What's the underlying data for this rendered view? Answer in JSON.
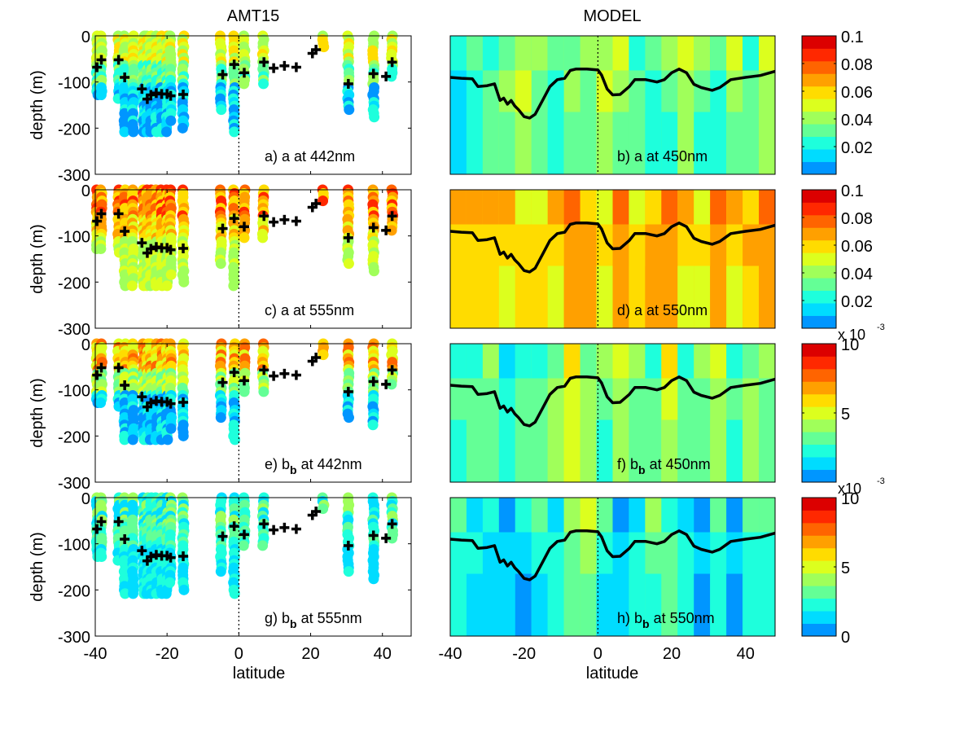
{
  "chart_data": {
    "type": "heatmap",
    "figure_columns": [
      {
        "title": "AMT15"
      },
      {
        "title": "MODEL"
      }
    ],
    "xlabel": "latitude",
    "ylabel": "depth (m)",
    "left_xlim": [
      -40,
      48
    ],
    "right_xlim": [
      -40,
      48
    ],
    "ylim": [
      -300,
      0
    ],
    "x_ticks": [
      "-40",
      "-20",
      "0",
      "20",
      "40"
    ],
    "x_tick_values": [
      -40,
      -20,
      0,
      20,
      40
    ],
    "y_ticks": [
      "0",
      "-100",
      "-200",
      "-300"
    ],
    "y_tick_values": [
      0,
      -100,
      -200,
      -300
    ],
    "equator_line": {
      "latitude": 0,
      "style": "dotted"
    },
    "colormap": [
      "#0096ff",
      "#00dcff",
      "#1effdc",
      "#64ff96",
      "#a0ff5a",
      "#dcff1e",
      "#ffdc00",
      "#ffa000",
      "#ff6400",
      "#ff2800",
      "#dc0000"
    ],
    "panels": [
      {
        "id": "a",
        "label": "a) a at 442nm",
        "column": "AMT15",
        "quantity": "a",
        "wavelength_nm": 442,
        "clim": [
          0,
          0.1
        ],
        "colorbar_ticks": [
          "0.1",
          "0.08",
          "0.06",
          "0.04",
          "0.02"
        ],
        "colorbar_tick_values": [
          0.1,
          0.08,
          0.06,
          0.04,
          0.02
        ],
        "colorbar_multiplier": ""
      },
      {
        "id": "b",
        "label": "b) a at 450nm",
        "column": "MODEL",
        "quantity": "a",
        "wavelength_nm": 450,
        "clim": [
          0,
          0.1
        ],
        "colorbar_ticks": [
          "0.1",
          "0.08",
          "0.06",
          "0.04",
          "0.02"
        ],
        "colorbar_tick_values": [
          0.1,
          0.08,
          0.06,
          0.04,
          0.02
        ],
        "colorbar_multiplier": ""
      },
      {
        "id": "c",
        "label": "c) a at 555nm",
        "column": "AMT15",
        "quantity": "a",
        "wavelength_nm": 555,
        "clim": [
          0,
          0.1
        ]
      },
      {
        "id": "d",
        "label": "d) a at 550nm",
        "column": "MODEL",
        "quantity": "a",
        "wavelength_nm": 550,
        "clim": [
          0,
          0.1
        ],
        "colorbar_ticks": [
          "0.1",
          "0.08",
          "0.06",
          "0.04",
          "0.02"
        ],
        "colorbar_tick_values": [
          0.1,
          0.08,
          0.06,
          0.04,
          0.02
        ],
        "colorbar_multiplier": "x 10-3"
      },
      {
        "id": "e",
        "label_main": "e) b",
        "label_sub": "b",
        "label_rest": " at 442nm",
        "column": "AMT15",
        "quantity": "bb",
        "wavelength_nm": 442,
        "clim": [
          0,
          10
        ]
      },
      {
        "id": "f",
        "label_main": "f) b",
        "label_sub": "b",
        "label_rest": " at 450nm",
        "column": "MODEL",
        "quantity": "bb",
        "wavelength_nm": 450,
        "clim": [
          0,
          10
        ],
        "colorbar_ticks": [
          "10",
          "5"
        ],
        "colorbar_tick_values": [
          10,
          5
        ],
        "colorbar_multiplier": "x10-3"
      },
      {
        "id": "g",
        "label_main": "g) b",
        "label_sub": "b",
        "label_rest": " at 555nm",
        "column": "AMT15",
        "quantity": "bb",
        "wavelength_nm": 555,
        "clim": [
          0,
          10
        ]
      },
      {
        "id": "h",
        "label_main": "h) b",
        "label_sub": "b",
        "label_rest": " at 550nm",
        "column": "MODEL",
        "quantity": "bb",
        "wavelength_nm": 550,
        "clim": [
          0,
          10
        ],
        "colorbar_ticks": [
          "10",
          "5",
          "0"
        ],
        "colorbar_tick_values": [
          10,
          5,
          0
        ],
        "colorbar_multiplier": ""
      }
    ],
    "mixed_layer_crosses": [
      [
        -39.5,
        -68
      ],
      [
        -38.3,
        -52
      ],
      [
        -33.5,
        -52
      ],
      [
        -31.8,
        -90
      ],
      [
        -27,
        -115
      ],
      [
        -25.5,
        -137
      ],
      [
        -24.5,
        -128
      ],
      [
        -23,
        -124
      ],
      [
        -21.5,
        -126
      ],
      [
        -20,
        -126
      ],
      [
        -19,
        -130
      ],
      [
        -15.5,
        -127
      ],
      [
        -4.5,
        -84
      ],
      [
        -1.3,
        -62
      ],
      [
        1.5,
        -80
      ],
      [
        7,
        -57
      ],
      [
        9.7,
        -70
      ],
      [
        12.7,
        -65
      ],
      [
        16,
        -68
      ],
      [
        20.5,
        -38
      ],
      [
        21.5,
        -30
      ],
      [
        30.5,
        -104
      ],
      [
        37.5,
        -82
      ],
      [
        41,
        -88
      ],
      [
        42.7,
        -57
      ]
    ],
    "model_mld_line": [
      [
        -40,
        -90
      ],
      [
        -37,
        -92
      ],
      [
        -34,
        -93
      ],
      [
        -32.5,
        -110
      ],
      [
        -30,
        -108
      ],
      [
        -28,
        -104
      ],
      [
        -26.5,
        -140
      ],
      [
        -25.5,
        -135
      ],
      [
        -24.5,
        -148
      ],
      [
        -23.5,
        -140
      ],
      [
        -22.5,
        -152
      ],
      [
        -21.5,
        -160
      ],
      [
        -20,
        -175
      ],
      [
        -18.5,
        -178
      ],
      [
        -17,
        -170
      ],
      [
        -15,
        -140
      ],
      [
        -13,
        -110
      ],
      [
        -11,
        -95
      ],
      [
        -9,
        -92
      ],
      [
        -7.5,
        -75
      ],
      [
        -6,
        -72
      ],
      [
        -3,
        -72
      ],
      [
        0,
        -74
      ],
      [
        1,
        -85
      ],
      [
        2.5,
        -115
      ],
      [
        4,
        -128
      ],
      [
        6,
        -127
      ],
      [
        8.5,
        -110
      ],
      [
        10,
        -95
      ],
      [
        13,
        -95
      ],
      [
        16,
        -100
      ],
      [
        18,
        -95
      ],
      [
        20,
        -80
      ],
      [
        22,
        -72
      ],
      [
        24,
        -80
      ],
      [
        26,
        -105
      ],
      [
        28,
        -112
      ],
      [
        31,
        -118
      ],
      [
        33,
        -112
      ],
      [
        36,
        -95
      ],
      [
        40,
        -90
      ],
      [
        44,
        -86
      ],
      [
        48,
        -77
      ]
    ],
    "amt15_stations_lat": [
      -39.5,
      -38.3,
      -33.5,
      -31.8,
      -29.5,
      -26.5,
      -25.5,
      -24.5,
      -23,
      -21.5,
      -20,
      -19,
      -15.5,
      -5,
      -1.3,
      1.5,
      6.8,
      23.5,
      30.5,
      37.5,
      42.7
    ]
  }
}
